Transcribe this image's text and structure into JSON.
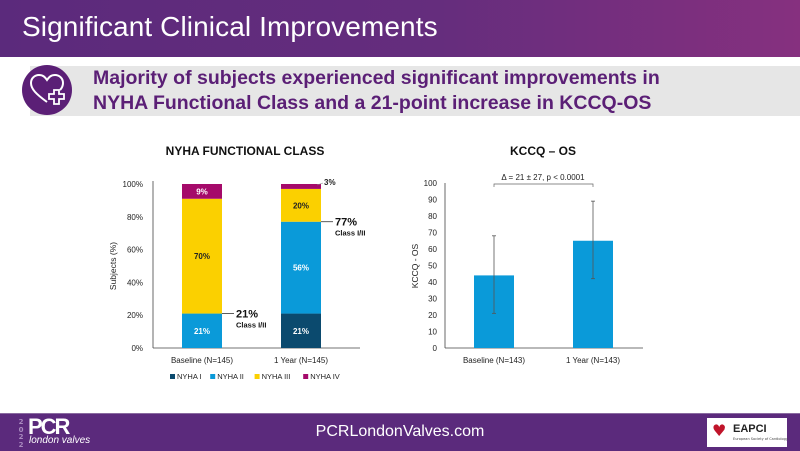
{
  "header": {
    "title": "Significant Clinical Improvements"
  },
  "subtitle": {
    "icon": "heart-plus-icon",
    "line1": "Majority of subjects experienced significant improvements in",
    "line2": "NYHA Functional Class and a 21-point increase in KCCQ-OS"
  },
  "footer": {
    "url": "PCRLondonValves.com",
    "logo_brand": "PCR",
    "logo_sub": "london valves",
    "logo_year": "2022",
    "partner_logo": "EAPCI",
    "partner_tag": "European Society of Cardiology"
  },
  "colors": {
    "nyha1": "#0b4a6e",
    "nyha2": "#0a9ad9",
    "nyha3": "#fbd000",
    "nyha4": "#a50a6a",
    "kccq_bar": "#0a9ad9",
    "brand": "#5b2a7c"
  },
  "chart_data": [
    {
      "type": "bar",
      "stacked": true,
      "title": "NYHA FUNCTIONAL CLASS",
      "xlabel": "",
      "ylabel": "Subjects  (%)",
      "ylim": [
        0,
        100
      ],
      "yticks": [
        "0%",
        "20%",
        "40%",
        "60%",
        "80%",
        "100%"
      ],
      "categories": [
        "Baseline (N=145)",
        "1 Year (N=145)"
      ],
      "series": [
        {
          "name": "NYHA I",
          "values": [
            0,
            21
          ],
          "labels": [
            "",
            "21%"
          ]
        },
        {
          "name": "NYHA II",
          "values": [
            21,
            56
          ],
          "labels": [
            "21%",
            "56%"
          ]
        },
        {
          "name": "NYHA III",
          "values": [
            70,
            20
          ],
          "labels": [
            "70%",
            "20%"
          ]
        },
        {
          "name": "NYHA IV",
          "values": [
            9,
            3
          ],
          "labels": [
            "9%",
            "3%"
          ]
        }
      ],
      "annotations": [
        {
          "category": "Baseline (N=145)",
          "value": "21%",
          "text": "Class I/II",
          "at": 21
        },
        {
          "category": "1 Year (N=145)",
          "value": "77%",
          "text": "Class I/II",
          "at": 77
        }
      ],
      "legend": "bottom",
      "grid": false
    },
    {
      "type": "bar",
      "title": "KCCQ – OS",
      "xlabel": "",
      "ylabel": "KCCQ - OS",
      "ylim": [
        0,
        100
      ],
      "yticks": [
        "0",
        "10",
        "20",
        "30",
        "40",
        "50",
        "60",
        "70",
        "80",
        "90",
        "100"
      ],
      "categories": [
        "Baseline (N=143)",
        "1 Year (N=143)"
      ],
      "values": [
        44,
        65
      ],
      "error_low": [
        21,
        42
      ],
      "error_high": [
        68,
        89
      ],
      "annotation": "Δ = 21 ± 27, p < 0.0001",
      "grid": false
    }
  ]
}
